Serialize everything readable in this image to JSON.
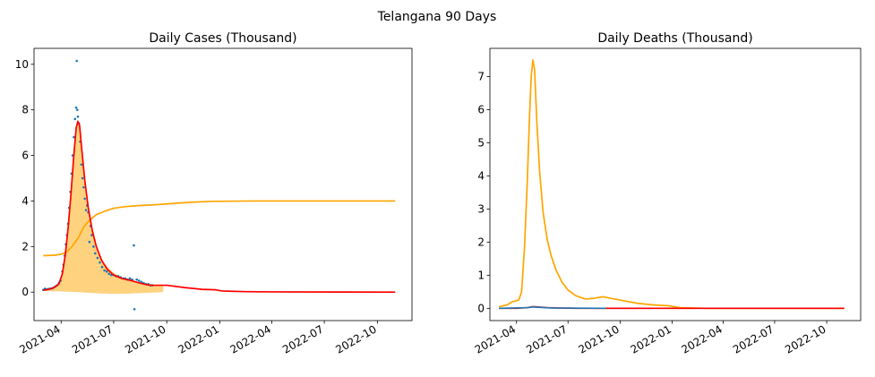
{
  "suptitle": "Telangana 90 Days",
  "colors": {
    "fit": "#ff0000",
    "secondary": "#ffa500",
    "fill": "#ffa500",
    "observed": "#1f77b4",
    "axis": "#000000"
  },
  "chart_data": [
    {
      "type": "scatter",
      "title": "Daily Cases (Thousand)",
      "xlabel": "",
      "ylabel": "",
      "x_tick_labels": [
        "2021-04",
        "2021-07",
        "2021-10",
        "2022-01",
        "2022-04",
        "2022-07",
        "2022-10"
      ],
      "x_tick_dates": [
        "2021-04-01",
        "2021-07-01",
        "2021-10-01",
        "2022-01-01",
        "2022-04-01",
        "2022-07-01",
        "2022-10-01"
      ],
      "xlim": [
        "2021-02-13",
        "2022-11-30"
      ],
      "ylim": [
        -1.25,
        10.7
      ],
      "y_ticks": [
        0,
        2,
        4,
        6,
        8,
        10
      ],
      "grid": false,
      "series": [
        {
          "kind": "points",
          "color": "#1f77b4",
          "points": [
            [
              "2021-03-01",
              0.1
            ],
            [
              "2021-03-04",
              0.15
            ],
            [
              "2021-03-07",
              0.12
            ],
            [
              "2021-03-10",
              0.14
            ],
            [
              "2021-03-13",
              0.15
            ],
            [
              "2021-03-16",
              0.16
            ],
            [
              "2021-03-19",
              0.2
            ],
            [
              "2021-03-22",
              0.25
            ],
            [
              "2021-03-25",
              0.3
            ],
            [
              "2021-03-28",
              0.4
            ],
            [
              "2021-03-31",
              0.5
            ],
            [
              "2021-04-03",
              0.9
            ],
            [
              "2021-04-05",
              1.2
            ],
            [
              "2021-04-07",
              1.6
            ],
            [
              "2021-04-09",
              2.1
            ],
            [
              "2021-04-11",
              2.5
            ],
            [
              "2021-04-13",
              3.0
            ],
            [
              "2021-04-15",
              3.7
            ],
            [
              "2021-04-17",
              4.4
            ],
            [
              "2021-04-19",
              5.2
            ],
            [
              "2021-04-21",
              6.0
            ],
            [
              "2021-04-23",
              6.8
            ],
            [
              "2021-04-25",
              7.6
            ],
            [
              "2021-04-27",
              8.1
            ],
            [
              "2021-04-28",
              10.15
            ],
            [
              "2021-04-29",
              8.0
            ],
            [
              "2021-04-30",
              7.7
            ],
            [
              "2021-05-02",
              7.4
            ],
            [
              "2021-05-04",
              6.6
            ],
            [
              "2021-05-06",
              5.6
            ],
            [
              "2021-05-08",
              5.0
            ],
            [
              "2021-05-10",
              4.6
            ],
            [
              "2021-05-12",
              4.1
            ],
            [
              "2021-05-14",
              3.6
            ],
            [
              "2021-05-16",
              3.8
            ],
            [
              "2021-05-18",
              3.5
            ],
            [
              "2021-05-20",
              2.2
            ],
            [
              "2021-05-22",
              2.9
            ],
            [
              "2021-05-24",
              2.5
            ],
            [
              "2021-05-27",
              2.0
            ],
            [
              "2021-05-30",
              1.7
            ],
            [
              "2021-06-03",
              1.5
            ],
            [
              "2021-06-07",
              1.3
            ],
            [
              "2021-06-11",
              1.1
            ],
            [
              "2021-06-15",
              0.95
            ],
            [
              "2021-06-19",
              0.9
            ],
            [
              "2021-06-23",
              0.8
            ],
            [
              "2021-06-27",
              0.75
            ],
            [
              "2021-07-01",
              0.75
            ],
            [
              "2021-07-05",
              0.7
            ],
            [
              "2021-07-09",
              0.7
            ],
            [
              "2021-07-13",
              0.65
            ],
            [
              "2021-07-17",
              0.6
            ],
            [
              "2021-07-21",
              0.6
            ],
            [
              "2021-07-25",
              0.55
            ],
            [
              "2021-07-29",
              0.6
            ],
            [
              "2021-08-02",
              0.55
            ],
            [
              "2021-08-05",
              2.05
            ],
            [
              "2021-08-06",
              -0.75
            ],
            [
              "2021-08-10",
              0.55
            ],
            [
              "2021-08-14",
              0.5
            ],
            [
              "2021-08-18",
              0.45
            ],
            [
              "2021-08-22",
              0.4
            ],
            [
              "2021-08-26",
              0.35
            ],
            [
              "2021-08-30",
              0.35
            ],
            [
              "2021-09-03",
              0.3
            ],
            [
              "2021-09-06",
              0.3
            ]
          ]
        },
        {
          "kind": "line",
          "color": "#ffa500",
          "points": [
            [
              "2021-03-01",
              1.6
            ],
            [
              "2021-03-20",
              1.62
            ],
            [
              "2021-04-01",
              1.66
            ],
            [
              "2021-04-10",
              1.75
            ],
            [
              "2021-04-20",
              2.0
            ],
            [
              "2021-05-01",
              2.4
            ],
            [
              "2021-05-10",
              2.85
            ],
            [
              "2021-05-20",
              3.15
            ],
            [
              "2021-06-01",
              3.4
            ],
            [
              "2021-06-15",
              3.55
            ],
            [
              "2021-07-01",
              3.68
            ],
            [
              "2021-07-20",
              3.75
            ],
            [
              "2021-08-15",
              3.8
            ],
            [
              "2021-09-15",
              3.84
            ],
            [
              "2021-10-15",
              3.9
            ],
            [
              "2021-11-15",
              3.95
            ],
            [
              "2021-12-15",
              3.98
            ],
            [
              "2022-01-15",
              3.99
            ],
            [
              "2022-03-01",
              4.0
            ],
            [
              "2022-11-01",
              4.0
            ]
          ]
        },
        {
          "kind": "area",
          "color": "#ffa500",
          "opacity": 0.5,
          "upper": [
            [
              "2021-03-01",
              0.1
            ],
            [
              "2021-03-15",
              0.15
            ],
            [
              "2021-03-25",
              0.3
            ],
            [
              "2021-04-01",
              0.6
            ],
            [
              "2021-04-08",
              1.6
            ],
            [
              "2021-04-15",
              3.6
            ],
            [
              "2021-04-22",
              6.2
            ],
            [
              "2021-04-29",
              7.5
            ],
            [
              "2021-05-03",
              7.2
            ],
            [
              "2021-05-08",
              5.8
            ],
            [
              "2021-05-15",
              4.2
            ],
            [
              "2021-05-22",
              3.0
            ],
            [
              "2021-06-01",
              2.0
            ],
            [
              "2021-06-15",
              1.25
            ],
            [
              "2021-07-01",
              0.85
            ],
            [
              "2021-07-15",
              0.65
            ],
            [
              "2021-08-01",
              0.55
            ],
            [
              "2021-08-15",
              0.4
            ],
            [
              "2021-09-01",
              0.3
            ],
            [
              "2021-09-15",
              0.28
            ],
            [
              "2021-09-25",
              0.3
            ]
          ],
          "lower": [
            [
              "2021-03-01",
              0.05
            ],
            [
              "2021-04-01",
              0.03
            ],
            [
              "2021-05-01",
              0.0
            ],
            [
              "2021-06-01",
              -0.05
            ],
            [
              "2021-07-01",
              -0.08
            ],
            [
              "2021-08-01",
              -0.06
            ],
            [
              "2021-09-25",
              0.0
            ]
          ]
        },
        {
          "kind": "line",
          "color": "#ff0000",
          "points": [
            [
              "2021-03-01",
              0.08
            ],
            [
              "2021-03-10",
              0.12
            ],
            [
              "2021-03-20",
              0.2
            ],
            [
              "2021-03-28",
              0.35
            ],
            [
              "2021-04-03",
              0.8
            ],
            [
              "2021-04-08",
              1.6
            ],
            [
              "2021-04-13",
              2.8
            ],
            [
              "2021-04-18",
              4.3
            ],
            [
              "2021-04-23",
              6.0
            ],
            [
              "2021-04-27",
              7.2
            ],
            [
              "2021-04-30",
              7.5
            ],
            [
              "2021-05-03",
              7.3
            ],
            [
              "2021-05-07",
              6.2
            ],
            [
              "2021-05-12",
              4.9
            ],
            [
              "2021-05-18",
              3.7
            ],
            [
              "2021-05-25",
              2.7
            ],
            [
              "2021-06-01",
              2.0
            ],
            [
              "2021-06-10",
              1.4
            ],
            [
              "2021-06-20",
              1.0
            ],
            [
              "2021-07-01",
              0.75
            ],
            [
              "2021-07-15",
              0.6
            ],
            [
              "2021-08-01",
              0.5
            ],
            [
              "2021-08-15",
              0.4
            ],
            [
              "2021-09-01",
              0.3
            ],
            [
              "2021-09-15",
              0.3
            ],
            [
              "2021-10-01",
              0.3
            ],
            [
              "2021-11-01",
              0.2
            ],
            [
              "2021-12-01",
              0.12
            ],
            [
              "2021-12-25",
              0.1
            ],
            [
              "2022-01-05",
              0.05
            ],
            [
              "2022-02-15",
              0.02
            ],
            [
              "2022-04-01",
              0.01
            ],
            [
              "2022-11-01",
              0.0
            ]
          ]
        }
      ]
    },
    {
      "type": "line",
      "title": "Daily Deaths (Thousand)",
      "xlabel": "",
      "ylabel": "",
      "x_tick_labels": [
        "2021-04",
        "2021-07",
        "2021-10",
        "2022-01",
        "2022-04",
        "2022-07",
        "2022-10"
      ],
      "x_tick_dates": [
        "2021-04-01",
        "2021-07-01",
        "2021-10-01",
        "2022-01-01",
        "2022-04-01",
        "2022-07-01",
        "2022-10-01"
      ],
      "xlim": [
        "2021-02-13",
        "2022-11-30"
      ],
      "ylim": [
        -0.37,
        7.85
      ],
      "y_ticks": [
        0,
        1,
        2,
        3,
        4,
        5,
        6,
        7
      ],
      "grid": false,
      "series": [
        {
          "kind": "line",
          "color": "#ffa500",
          "points": [
            [
              "2021-03-01",
              0.05
            ],
            [
              "2021-03-15",
              0.1
            ],
            [
              "2021-03-25",
              0.2
            ],
            [
              "2021-04-05",
              0.25
            ],
            [
              "2021-04-10",
              0.5
            ],
            [
              "2021-04-15",
              1.8
            ],
            [
              "2021-04-20",
              3.8
            ],
            [
              "2021-04-24",
              5.8
            ],
            [
              "2021-04-27",
              7.0
            ],
            [
              "2021-04-30",
              7.5
            ],
            [
              "2021-05-03",
              7.2
            ],
            [
              "2021-05-07",
              5.6
            ],
            [
              "2021-05-12",
              4.1
            ],
            [
              "2021-05-18",
              2.9
            ],
            [
              "2021-05-25",
              2.1
            ],
            [
              "2021-06-01",
              1.6
            ],
            [
              "2021-06-10",
              1.15
            ],
            [
              "2021-06-20",
              0.8
            ],
            [
              "2021-07-01",
              0.55
            ],
            [
              "2021-07-15",
              0.38
            ],
            [
              "2021-08-01",
              0.28
            ],
            [
              "2021-08-15",
              0.3
            ],
            [
              "2021-09-01",
              0.35
            ],
            [
              "2021-09-15",
              0.3
            ],
            [
              "2021-10-01",
              0.25
            ],
            [
              "2021-11-01",
              0.15
            ],
            [
              "2021-12-01",
              0.1
            ],
            [
              "2021-12-25",
              0.08
            ],
            [
              "2022-01-15",
              0.02
            ],
            [
              "2022-03-01",
              0.0
            ],
            [
              "2022-11-01",
              0.0
            ]
          ]
        },
        {
          "kind": "line",
          "color": "#ff0000",
          "points": [
            [
              "2021-03-01",
              0.0
            ],
            [
              "2021-04-01",
              0.0
            ],
            [
              "2021-04-20",
              0.02
            ],
            [
              "2021-04-30",
              0.05
            ],
            [
              "2021-05-10",
              0.04
            ],
            [
              "2021-05-25",
              0.02
            ],
            [
              "2021-06-15",
              0.01
            ],
            [
              "2021-07-15",
              0.0
            ],
            [
              "2022-11-01",
              0.0
            ]
          ]
        },
        {
          "kind": "line",
          "color": "#1f77b4",
          "points": [
            [
              "2021-03-01",
              0.0
            ],
            [
              "2021-04-20",
              0.02
            ],
            [
              "2021-04-30",
              0.04
            ],
            [
              "2021-05-10",
              0.03
            ],
            [
              "2021-06-01",
              0.01
            ],
            [
              "2021-09-06",
              0.0
            ]
          ]
        }
      ]
    }
  ]
}
